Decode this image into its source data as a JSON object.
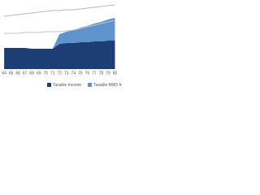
{
  "chart_data": {
    "type": "area",
    "x": [
      64,
      65,
      66,
      67,
      68,
      69,
      70,
      71,
      72,
      73,
      74,
      75,
      76,
      77,
      78,
      79,
      80
    ],
    "xlim": [
      63.4,
      81
    ],
    "ylim": [
      0,
      85
    ],
    "stacked": true,
    "series": [
      {
        "name": "Taxable Income",
        "color": "#1d3e75",
        "values": [
          26,
          26,
          26,
          26,
          25,
          25,
          25,
          25,
          31,
          32,
          32,
          33,
          33,
          34,
          34,
          35,
          35
        ]
      },
      {
        "name": "Taxable RMD from IRA",
        "color": "#5e93cc",
        "values": [
          0,
          0,
          0,
          0,
          0,
          0,
          0,
          0,
          12,
          14,
          16,
          18,
          20,
          22,
          24,
          26,
          28
        ]
      }
    ],
    "lines": [
      {
        "color": "#b8b8b8",
        "values": [
          65,
          66,
          67,
          68,
          69,
          70,
          71,
          72,
          72,
          73,
          73,
          74,
          75,
          76,
          77,
          78,
          79
        ]
      },
      {
        "color": "#c4c4c4",
        "values": [
          44,
          44,
          44,
          45,
          45,
          45,
          46,
          46,
          46,
          47,
          48,
          50,
          52,
          54,
          56,
          58,
          60
        ]
      }
    ]
  }
}
